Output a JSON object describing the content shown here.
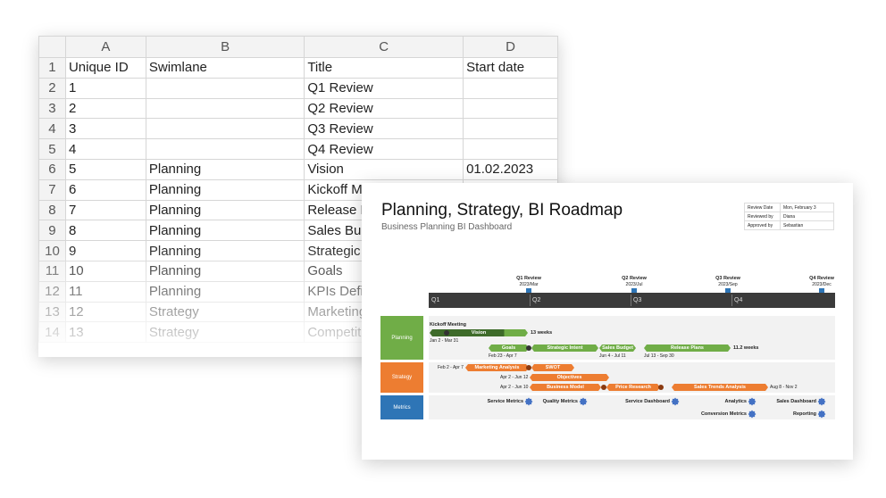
{
  "sheet": {
    "columns": [
      "A",
      "B",
      "C",
      "D"
    ],
    "rows": [
      [
        "1",
        "Unique ID",
        "Swimlane",
        "Title",
        "Start date"
      ],
      [
        "2",
        "1",
        "",
        "Q1 Review",
        ""
      ],
      [
        "3",
        "2",
        "",
        "Q2 Review",
        ""
      ],
      [
        "4",
        "3",
        "",
        "Q3 Review",
        ""
      ],
      [
        "5",
        "4",
        "",
        "Q4 Review",
        ""
      ],
      [
        "6",
        "5",
        "Planning",
        "Vision",
        "01.02.2023"
      ],
      [
        "7",
        "6",
        "Planning",
        "Kickoff Meeting",
        ""
      ],
      [
        "8",
        "7",
        "Planning",
        "Release Plans",
        ""
      ],
      [
        "9",
        "8",
        "Planning",
        "Sales Budget",
        ""
      ],
      [
        "10",
        "9",
        "Planning",
        "Strategic Intent",
        ""
      ],
      [
        "11",
        "10",
        "Planning",
        "Goals",
        ""
      ],
      [
        "12",
        "11",
        "Planning",
        "KPIs Definition",
        ""
      ],
      [
        "13",
        "12",
        "Strategy",
        "Marketing Analysis",
        ""
      ],
      [
        "14",
        "13",
        "Strategy",
        "Competitors",
        ""
      ]
    ]
  },
  "roadmap": {
    "title": "Planning, Strategy, BI Roadmap",
    "subtitle": "Business Planning BI Dashboard",
    "meta": [
      [
        "Review Date",
        "Mon, February 3"
      ],
      [
        "Reviewed by",
        "Diana"
      ],
      [
        "Approved by",
        "Sebastian"
      ]
    ],
    "quarters": [
      "Q1",
      "Q2",
      "Q3",
      "Q4"
    ],
    "reviews": [
      [
        "Q1 Review",
        "2023/Mar"
      ],
      [
        "Q2 Review",
        "2023/Jul"
      ],
      [
        "Q3 Review",
        "2023/Sep"
      ],
      [
        "Q4 Review",
        "2023/Dec"
      ]
    ],
    "lanes": {
      "planning": "Planning",
      "strategy": "Strategy",
      "metrics": "Metrics"
    },
    "colors": {
      "planning": "#70ad47",
      "strategy": "#ed7d31",
      "metrics": "#2e75b6",
      "timeline": "#3b3b3b"
    },
    "planning": {
      "kickoff": "Kickoff Meeting",
      "vision": "Vision",
      "vision_dur": "13 weeks",
      "vision_dates": "Jan 2 - Mar 31",
      "goals": "Goals",
      "strategic": "Strategic Intent",
      "goals_dates": "Feb 23 - Apr 7",
      "budget": "Sales Budget",
      "budget_dates": "Jun 4 - Jul 11",
      "release": "Release Plans",
      "release_dates": "Jul 13 - Sep 30",
      "release_dur": "11.2 weeks"
    },
    "strategy": {
      "r1_dates": "Feb 2 - Apr 7",
      "marketing": "Marketing Analysis",
      "swot": "SWOT",
      "r2_dates": "Apr 2 - Jun 12",
      "objectives": "Objectives",
      "r3_dates": "Apr 2 - Jun 10",
      "business": "Business Model",
      "price": "Price Research",
      "sales": "Sales Trends Analysis",
      "sales_dates": "Aug 8 - Nov 2"
    },
    "metrics": [
      "Service Metrics",
      "Quality Metrics",
      "Service Dashboard",
      "Analytics",
      "Sales Dashboard",
      "Conversion Metrics",
      "Reporting"
    ]
  }
}
